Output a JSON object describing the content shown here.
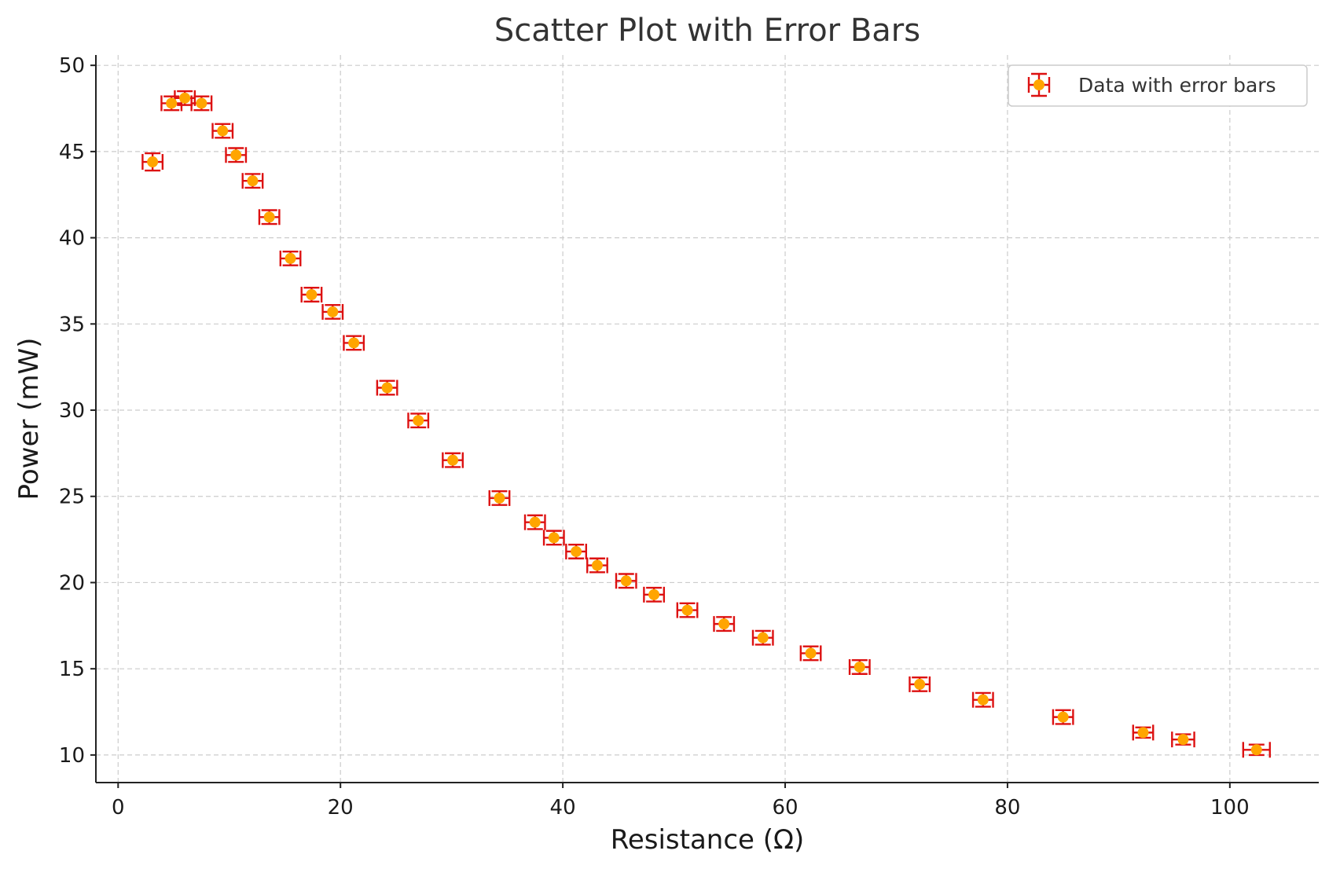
{
  "chart_data": {
    "type": "scatter",
    "title": "Scatter Plot with Error Bars",
    "xlabel": "Resistance (Ω)",
    "ylabel": "Power (mW)",
    "xlim": [
      -2,
      108
    ],
    "ylim": [
      8.4,
      50.6
    ],
    "xticks": [
      0,
      20,
      40,
      60,
      80,
      100
    ],
    "yticks": [
      10,
      15,
      20,
      25,
      30,
      35,
      40,
      45,
      50
    ],
    "grid": true,
    "legend": {
      "position": "top-right",
      "entries": [
        "Data with error bars"
      ]
    },
    "colors": {
      "marker": "#ffa500",
      "error_bar": "#dd1111"
    },
    "series": [
      {
        "name": "Data with error bars",
        "points": [
          {
            "x": 3.1,
            "y": 44.4,
            "xerr": 0.9,
            "yerr": 0.5
          },
          {
            "x": 4.8,
            "y": 47.8,
            "xerr": 0.9,
            "yerr": 0.4
          },
          {
            "x": 6.0,
            "y": 48.1,
            "xerr": 0.9,
            "yerr": 0.4
          },
          {
            "x": 7.5,
            "y": 47.8,
            "xerr": 0.9,
            "yerr": 0.4
          },
          {
            "x": 9.4,
            "y": 46.2,
            "xerr": 0.9,
            "yerr": 0.4
          },
          {
            "x": 10.6,
            "y": 44.8,
            "xerr": 0.9,
            "yerr": 0.4
          },
          {
            "x": 12.1,
            "y": 43.3,
            "xerr": 0.9,
            "yerr": 0.4
          },
          {
            "x": 13.6,
            "y": 41.2,
            "xerr": 0.9,
            "yerr": 0.4
          },
          {
            "x": 15.5,
            "y": 38.8,
            "xerr": 0.9,
            "yerr": 0.4
          },
          {
            "x": 17.4,
            "y": 36.7,
            "xerr": 0.9,
            "yerr": 0.4
          },
          {
            "x": 19.3,
            "y": 35.7,
            "xerr": 0.9,
            "yerr": 0.4
          },
          {
            "x": 21.2,
            "y": 33.9,
            "xerr": 0.9,
            "yerr": 0.4
          },
          {
            "x": 24.2,
            "y": 31.3,
            "xerr": 0.9,
            "yerr": 0.4
          },
          {
            "x": 27.0,
            "y": 29.4,
            "xerr": 0.9,
            "yerr": 0.4
          },
          {
            "x": 30.1,
            "y": 27.1,
            "xerr": 0.9,
            "yerr": 0.4
          },
          {
            "x": 34.3,
            "y": 24.9,
            "xerr": 0.9,
            "yerr": 0.4
          },
          {
            "x": 37.5,
            "y": 23.5,
            "xerr": 0.9,
            "yerr": 0.4
          },
          {
            "x": 39.2,
            "y": 22.6,
            "xerr": 0.9,
            "yerr": 0.4
          },
          {
            "x": 41.2,
            "y": 21.8,
            "xerr": 0.9,
            "yerr": 0.4
          },
          {
            "x": 43.1,
            "y": 21.0,
            "xerr": 0.9,
            "yerr": 0.4
          },
          {
            "x": 45.7,
            "y": 20.1,
            "xerr": 0.9,
            "yerr": 0.4
          },
          {
            "x": 48.2,
            "y": 19.3,
            "xerr": 0.9,
            "yerr": 0.4
          },
          {
            "x": 51.2,
            "y": 18.4,
            "xerr": 0.9,
            "yerr": 0.4
          },
          {
            "x": 54.5,
            "y": 17.6,
            "xerr": 0.9,
            "yerr": 0.4
          },
          {
            "x": 58.0,
            "y": 16.8,
            "xerr": 0.9,
            "yerr": 0.4
          },
          {
            "x": 62.3,
            "y": 15.9,
            "xerr": 0.9,
            "yerr": 0.4
          },
          {
            "x": 66.7,
            "y": 15.1,
            "xerr": 0.9,
            "yerr": 0.4
          },
          {
            "x": 72.1,
            "y": 14.1,
            "xerr": 0.9,
            "yerr": 0.4
          },
          {
            "x": 77.8,
            "y": 13.2,
            "xerr": 0.9,
            "yerr": 0.4
          },
          {
            "x": 85.0,
            "y": 12.2,
            "xerr": 0.9,
            "yerr": 0.4
          },
          {
            "x": 92.2,
            "y": 11.3,
            "xerr": 0.9,
            "yerr": 0.3
          },
          {
            "x": 95.8,
            "y": 10.9,
            "xerr": 1.0,
            "yerr": 0.3
          },
          {
            "x": 102.4,
            "y": 10.3,
            "xerr": 1.2,
            "yerr": 0.3
          }
        ]
      }
    ]
  }
}
